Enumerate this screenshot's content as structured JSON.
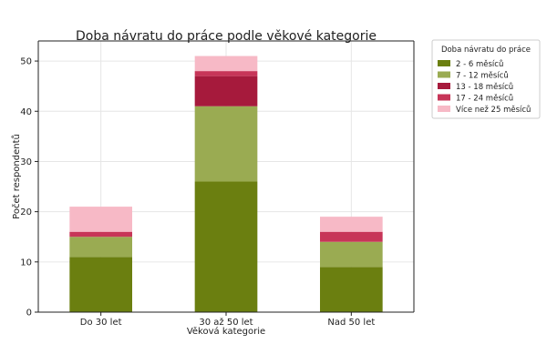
{
  "chart_data": {
    "type": "bar",
    "stacked": true,
    "title": "Doba návratu do práce podle věkové kategorie",
    "xlabel": "Věková kategorie",
    "ylabel": "Počet respondentů",
    "categories": [
      "Do 30 let",
      "30 až 50 let",
      "Nad 50 let"
    ],
    "ylim": [
      0,
      54
    ],
    "yticks": [
      0,
      10,
      20,
      30,
      40,
      50
    ],
    "grid": true,
    "legend": {
      "title": "Doba návratu do práce",
      "placement": "outside-top-right"
    },
    "series": [
      {
        "name": "2 - 6 měsíců",
        "color": "#6b7f10",
        "values": [
          11,
          26,
          9
        ]
      },
      {
        "name": "7 - 12 měsíců",
        "color": "#9aab52",
        "values": [
          4,
          15,
          5
        ]
      },
      {
        "name": "13 - 18 měsíců",
        "color": "#a61a3c",
        "values": [
          0,
          6,
          0
        ]
      },
      {
        "name": "17 - 24 měsíců",
        "color": "#c73558",
        "values": [
          1,
          1,
          2
        ]
      },
      {
        "name": "Více než 25 měsíců",
        "color": "#f7b9c6",
        "values": [
          5,
          3,
          3
        ]
      }
    ]
  }
}
